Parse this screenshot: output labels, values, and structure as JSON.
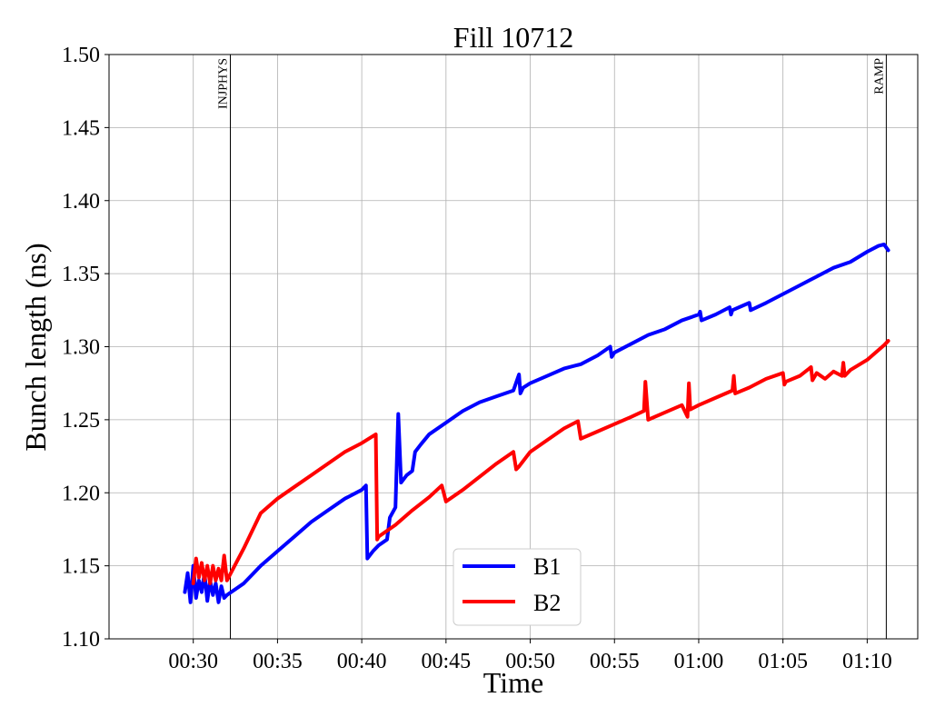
{
  "chart_data": {
    "type": "line",
    "title": "Fill 10712",
    "xlabel": "Time",
    "ylabel": "Bunch length (ns)",
    "xlim": [
      "00:25",
      "01:13"
    ],
    "ylim": [
      1.1,
      1.5
    ],
    "x_ticks": [
      "00:30",
      "00:35",
      "00:40",
      "00:45",
      "00:50",
      "00:55",
      "01:00",
      "01:05",
      "01:10"
    ],
    "y_ticks": [
      "1.10",
      "1.15",
      "1.20",
      "1.25",
      "1.30",
      "1.35",
      "1.40",
      "1.45",
      "1.50"
    ],
    "grid": true,
    "legend_position": "lower-center",
    "vlines": [
      {
        "x": "00:32:12",
        "label": "INJPHYS"
      },
      {
        "x": "01:11:08",
        "label": "RAMP"
      }
    ],
    "series": [
      {
        "name": "B1",
        "color": "#0000ff",
        "x": [
          "00:29:30",
          "00:29:40",
          "00:29:50",
          "00:30:00",
          "00:30:10",
          "00:30:20",
          "00:30:30",
          "00:30:40",
          "00:30:50",
          "00:31:00",
          "00:31:10",
          "00:31:20",
          "00:31:30",
          "00:31:40",
          "00:31:50",
          "00:32:00",
          "00:32:30",
          "00:33:00",
          "00:34:00",
          "00:35:00",
          "00:36:00",
          "00:37:00",
          "00:38:00",
          "00:39:00",
          "00:40:00",
          "00:40:15",
          "00:40:20",
          "00:40:40",
          "00:41:00",
          "00:41:30",
          "00:41:40",
          "00:42:00",
          "00:42:10",
          "00:42:20",
          "00:42:40",
          "00:43:00",
          "00:43:10",
          "00:43:30",
          "00:44:00",
          "00:45:00",
          "00:46:00",
          "00:47:00",
          "00:48:00",
          "00:49:00",
          "00:49:20",
          "00:49:25",
          "00:49:35",
          "00:50:00",
          "00:51:00",
          "00:52:00",
          "00:53:00",
          "00:54:00",
          "00:54:45",
          "00:54:50",
          "00:55:00",
          "00:56:00",
          "00:57:00",
          "00:58:00",
          "00:59:00",
          "01:00:00",
          "01:00:05",
          "01:00:10",
          "01:01:00",
          "01:01:50",
          "01:01:55",
          "01:02:00",
          "01:03:00",
          "01:03:05",
          "01:04:00",
          "01:05:00",
          "01:06:00",
          "01:07:00",
          "01:08:00",
          "01:09:00",
          "01:10:00",
          "01:10:40",
          "01:11:00",
          "01:11:15"
        ],
        "y": [
          1.132,
          1.145,
          1.125,
          1.15,
          1.128,
          1.14,
          1.132,
          1.145,
          1.126,
          1.14,
          1.13,
          1.138,
          1.125,
          1.136,
          1.128,
          1.13,
          1.134,
          1.138,
          1.15,
          1.16,
          1.17,
          1.18,
          1.188,
          1.196,
          1.202,
          1.205,
          1.155,
          1.16,
          1.164,
          1.168,
          1.183,
          1.19,
          1.254,
          1.207,
          1.212,
          1.215,
          1.228,
          1.233,
          1.24,
          1.248,
          1.256,
          1.262,
          1.266,
          1.27,
          1.281,
          1.268,
          1.272,
          1.275,
          1.28,
          1.285,
          1.288,
          1.294,
          1.3,
          1.293,
          1.296,
          1.302,
          1.308,
          1.312,
          1.318,
          1.322,
          1.324,
          1.318,
          1.322,
          1.327,
          1.322,
          1.325,
          1.33,
          1.325,
          1.33,
          1.336,
          1.342,
          1.348,
          1.354,
          1.358,
          1.365,
          1.369,
          1.37,
          1.366
        ]
      },
      {
        "name": "B2",
        "color": "#ff0000",
        "x": [
          "00:30:00",
          "00:30:10",
          "00:30:20",
          "00:30:30",
          "00:30:40",
          "00:30:50",
          "00:31:00",
          "00:31:10",
          "00:31:20",
          "00:31:30",
          "00:31:40",
          "00:31:50",
          "00:32:00",
          "00:33:00",
          "00:34:00",
          "00:35:00",
          "00:36:00",
          "00:37:00",
          "00:38:00",
          "00:39:00",
          "00:40:00",
          "00:40:50",
          "00:40:55",
          "00:41:00",
          "00:42:00",
          "00:43:00",
          "00:44:00",
          "00:44:45",
          "00:45:00",
          "00:46:00",
          "00:47:00",
          "00:48:00",
          "00:49:00",
          "00:49:10",
          "00:49:20",
          "00:50:00",
          "00:51:00",
          "00:52:00",
          "00:52:50",
          "00:53:00",
          "00:54:00",
          "00:55:00",
          "00:56:00",
          "00:56:45",
          "00:56:50",
          "00:57:00",
          "00:58:00",
          "00:59:00",
          "00:59:20",
          "00:59:25",
          "00:59:30",
          "01:00:00",
          "01:01:00",
          "01:02:00",
          "01:02:05",
          "01:02:10",
          "01:03:00",
          "01:04:00",
          "01:05:00",
          "01:05:05",
          "01:05:10",
          "01:06:00",
          "01:06:40",
          "01:06:45",
          "01:07:00",
          "01:07:30",
          "01:08:00",
          "01:08:30",
          "01:08:35",
          "01:08:40",
          "01:09:00",
          "01:10:00",
          "01:11:00",
          "01:11:15"
        ],
        "y": [
          1.138,
          1.155,
          1.142,
          1.152,
          1.14,
          1.15,
          1.138,
          1.15,
          1.14,
          1.148,
          1.14,
          1.157,
          1.14,
          1.162,
          1.186,
          1.196,
          1.204,
          1.212,
          1.22,
          1.228,
          1.234,
          1.24,
          1.168,
          1.17,
          1.178,
          1.188,
          1.197,
          1.205,
          1.194,
          1.202,
          1.211,
          1.22,
          1.228,
          1.216,
          1.218,
          1.228,
          1.236,
          1.244,
          1.249,
          1.237,
          1.242,
          1.247,
          1.252,
          1.256,
          1.276,
          1.25,
          1.255,
          1.26,
          1.252,
          1.275,
          1.257,
          1.26,
          1.265,
          1.27,
          1.28,
          1.268,
          1.272,
          1.278,
          1.282,
          1.274,
          1.276,
          1.28,
          1.286,
          1.277,
          1.282,
          1.278,
          1.283,
          1.28,
          1.289,
          1.28,
          1.284,
          1.291,
          1.301,
          1.304
        ]
      }
    ]
  }
}
